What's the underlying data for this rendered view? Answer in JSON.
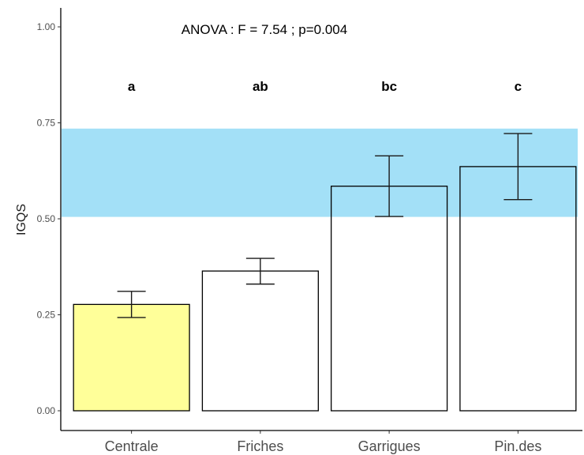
{
  "chart_data": {
    "type": "bar",
    "title": "",
    "annotation": "ANOVA : F = 7.54 ; p=0.004",
    "xlabel": "",
    "ylabel": "IGQS",
    "ylim": [
      0,
      1.03
    ],
    "yticks": [
      "0.00",
      "0.25",
      "0.50",
      "0.75",
      "1.00"
    ],
    "categories": [
      "Centrale",
      "Friches",
      "Garrigues",
      "Pin.des"
    ],
    "values": [
      0.277,
      0.364,
      0.585,
      0.636
    ],
    "error_low": [
      0.243,
      0.33,
      0.506,
      0.55
    ],
    "error_high": [
      0.311,
      0.397,
      0.664,
      0.722
    ],
    "group_letters": [
      "a",
      "ab",
      "bc",
      "c"
    ],
    "band": {
      "from": 0.505,
      "to": 0.735,
      "color": "#a3e0f7"
    },
    "bar_fills": [
      "#ffff99",
      "#ffffff",
      "#ffffff",
      "#ffffff"
    ],
    "bar_stroke": "#000000",
    "grid": false,
    "legend": "none"
  }
}
